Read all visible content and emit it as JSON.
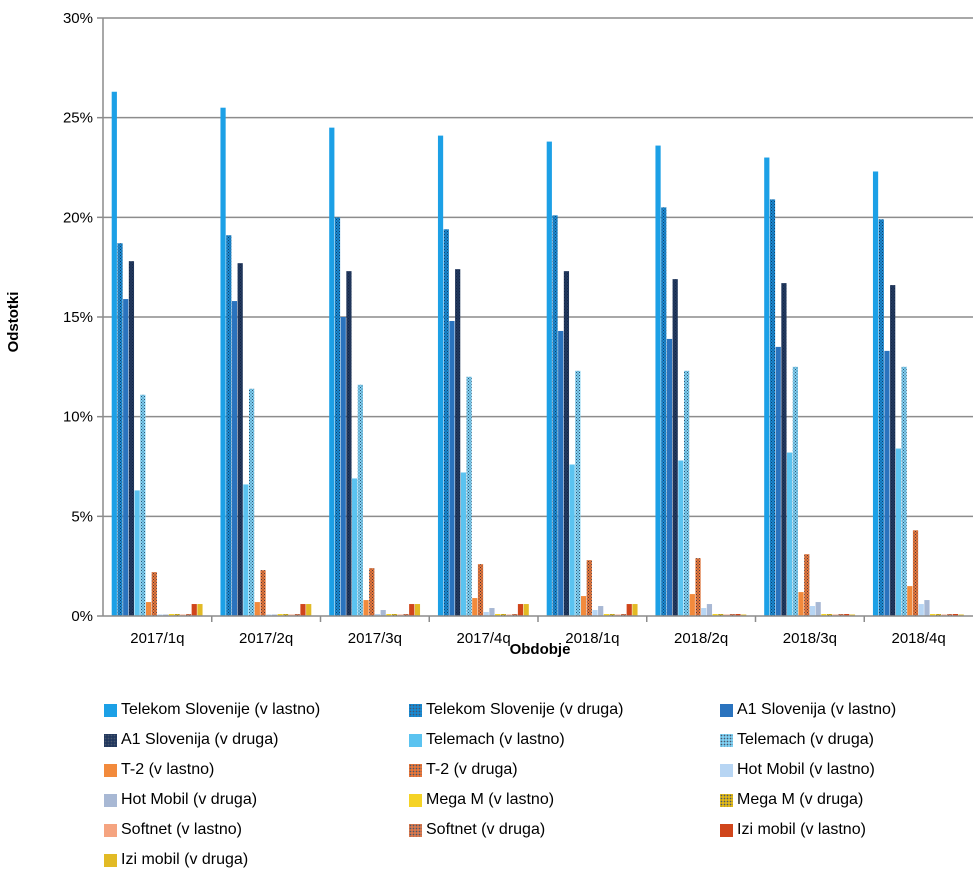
{
  "chart_data": {
    "type": "bar",
    "xlabel": "Obdobje",
    "ylabel": "Odstotki",
    "ylim": [
      0,
      30
    ],
    "y_ticks": [
      "0%",
      "5%",
      "10%",
      "15%",
      "20%",
      "25%",
      "30%"
    ],
    "grid": true,
    "legend_position": "bottom",
    "categories": [
      "2017/1q",
      "2017/2q",
      "2017/3q",
      "2017/4q",
      "2018/1q",
      "2018/2q",
      "2018/3q",
      "2018/4q"
    ],
    "series": [
      {
        "name": "Telekom Slovenije (v lastno)",
        "color": "#1CA0E6",
        "pattern": "solid",
        "values": [
          26.3,
          25.5,
          24.5,
          24.1,
          23.8,
          23.6,
          23.0,
          22.3
        ]
      },
      {
        "name": "Telekom Slovenije (v druga)",
        "color": "#1A8AD2",
        "pattern": "dotted",
        "values": [
          18.7,
          19.1,
          20.0,
          19.4,
          20.1,
          20.5,
          20.9,
          19.9
        ]
      },
      {
        "name": "A1 Slovenija (v lastno)",
        "color": "#2A73BE",
        "pattern": "solid",
        "values": [
          15.9,
          15.8,
          15.0,
          14.8,
          14.3,
          13.9,
          13.5,
          13.3
        ]
      },
      {
        "name": "A1 Slovenija (v druga)",
        "color": "#22385E",
        "pattern": "dotted",
        "values": [
          17.8,
          17.7,
          17.3,
          17.4,
          17.3,
          16.9,
          16.7,
          16.6
        ]
      },
      {
        "name": "Telemach (v lastno)",
        "color": "#5BC3F0",
        "pattern": "solid",
        "values": [
          6.3,
          6.6,
          6.9,
          7.2,
          7.6,
          7.8,
          8.2,
          8.4
        ]
      },
      {
        "name": "Telemach (v druga)",
        "color": "#7FD0F2",
        "pattern": "dotted",
        "values": [
          11.1,
          11.4,
          11.6,
          12.0,
          12.3,
          12.3,
          12.5,
          12.5
        ]
      },
      {
        "name": "T-2 (v lastno)",
        "color": "#F28A3C",
        "pattern": "solid",
        "values": [
          0.7,
          0.7,
          0.8,
          0.9,
          1.0,
          1.1,
          1.2,
          1.5
        ]
      },
      {
        "name": "T-2 (v druga)",
        "color": "#E8773A",
        "pattern": "dotted",
        "values": [
          2.2,
          2.3,
          2.4,
          2.6,
          2.8,
          2.9,
          3.1,
          4.3
        ]
      },
      {
        "name": "Hot Mobil (v lastno)",
        "color": "#B7D5F3",
        "pattern": "solid",
        "values": [
          0.05,
          0.05,
          0.1,
          0.2,
          0.3,
          0.4,
          0.5,
          0.6
        ]
      },
      {
        "name": "Hot Mobil (v druga)",
        "color": "#A8B8D4",
        "pattern": "solid",
        "values": [
          0.05,
          0.05,
          0.3,
          0.4,
          0.5,
          0.6,
          0.7,
          0.8
        ]
      },
      {
        "name": "Mega M (v lastno)",
        "color": "#F5D326",
        "pattern": "solid",
        "values": [
          0.1,
          0.1,
          0.1,
          0.1,
          0.1,
          0.1,
          0.1,
          0.1
        ]
      },
      {
        "name": "Mega M (v druga)",
        "color": "#E0B818",
        "pattern": "dotted",
        "values": [
          0.1,
          0.1,
          0.1,
          0.1,
          0.1,
          0.1,
          0.1,
          0.1
        ]
      },
      {
        "name": "Softnet (v lastno)",
        "color": "#F5A480",
        "pattern": "solid",
        "values": [
          0.05,
          0.05,
          0.05,
          0.05,
          0.05,
          0.05,
          0.05,
          0.05
        ]
      },
      {
        "name": "Softnet (v druga)",
        "color": "#D9794E",
        "pattern": "dotted",
        "values": [
          0.1,
          0.1,
          0.1,
          0.1,
          0.1,
          0.1,
          0.1,
          0.1
        ]
      },
      {
        "name": "Izi mobil (v lastno)",
        "color": "#D0451B",
        "pattern": "solid",
        "values": [
          0.6,
          0.6,
          0.6,
          0.6,
          0.6,
          0.1,
          0.1,
          0.1
        ]
      },
      {
        "name": "Izi mobil (v druga)",
        "color": "#E2BA25",
        "pattern": "solid",
        "values": [
          0.6,
          0.6,
          0.6,
          0.6,
          0.6,
          0.05,
          0.05,
          0.05
        ]
      }
    ]
  }
}
